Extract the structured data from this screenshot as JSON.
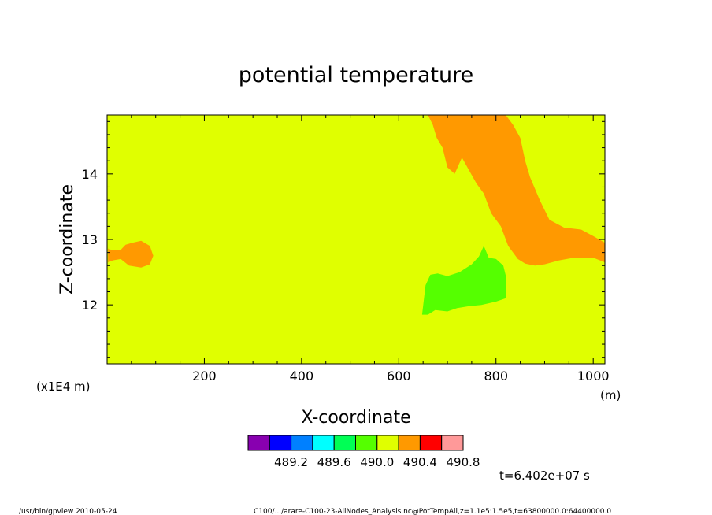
{
  "chart_data": {
    "type": "heatmap",
    "title": "potential temperature",
    "xlabel": "X-coordinate",
    "ylabel": "Z-coordinate",
    "x_units": "(m)",
    "y_units": "(x1E4 m)",
    "xlim": [
      0,
      1024
    ],
    "ylim": [
      11.1,
      14.9
    ],
    "x_ticks": [
      200,
      400,
      600,
      800,
      1000
    ],
    "y_ticks": [
      12,
      13,
      14
    ],
    "background_value_range": [
      490.2,
      490.4
    ],
    "background_color": "#e0ff00",
    "regions": [
      {
        "name": "orange-left",
        "value_range": [
          490.4,
          490.6
        ],
        "color": "#ff9900",
        "polygon": [
          [
            2,
            12.86
          ],
          [
            12,
            12.83
          ],
          [
            28,
            12.84
          ],
          [
            38,
            12.92
          ],
          [
            52,
            12.95
          ],
          [
            70,
            12.98
          ],
          [
            88,
            12.9
          ],
          [
            95,
            12.75
          ],
          [
            88,
            12.62
          ],
          [
            70,
            12.57
          ],
          [
            45,
            12.6
          ],
          [
            28,
            12.7
          ],
          [
            12,
            12.68
          ],
          [
            2,
            12.65
          ]
        ]
      },
      {
        "name": "orange-upper-right",
        "value_range": [
          490.4,
          490.6
        ],
        "color": "#ff9900",
        "polygon": [
          [
            660,
            14.9
          ],
          [
            820,
            14.9
          ],
          [
            835,
            14.75
          ],
          [
            850,
            14.55
          ],
          [
            860,
            14.2
          ],
          [
            870,
            13.95
          ],
          [
            890,
            13.6
          ],
          [
            910,
            13.3
          ],
          [
            940,
            13.18
          ],
          [
            975,
            13.15
          ],
          [
            1000,
            13.05
          ],
          [
            1024,
            12.95
          ],
          [
            1024,
            12.65
          ],
          [
            1000,
            12.72
          ],
          [
            960,
            12.72
          ],
          [
            930,
            12.68
          ],
          [
            900,
            12.62
          ],
          [
            880,
            12.6
          ],
          [
            860,
            12.63
          ],
          [
            845,
            12.7
          ],
          [
            825,
            12.9
          ],
          [
            810,
            13.2
          ],
          [
            790,
            13.4
          ],
          [
            775,
            13.7
          ],
          [
            760,
            13.85
          ],
          [
            745,
            14.05
          ],
          [
            730,
            14.25
          ],
          [
            715,
            14.0
          ],
          [
            700,
            14.1
          ],
          [
            690,
            14.4
          ],
          [
            678,
            14.55
          ],
          [
            670,
            14.75
          ]
        ]
      },
      {
        "name": "green-patch",
        "value_range": [
          490.0,
          490.2
        ],
        "color": "#55ff00",
        "polygon": [
          [
            648,
            11.85
          ],
          [
            655,
            12.3
          ],
          [
            665,
            12.46
          ],
          [
            680,
            12.48
          ],
          [
            700,
            12.44
          ],
          [
            725,
            12.5
          ],
          [
            750,
            12.62
          ],
          [
            765,
            12.74
          ],
          [
            775,
            12.9
          ],
          [
            785,
            12.72
          ],
          [
            800,
            12.7
          ],
          [
            815,
            12.6
          ],
          [
            820,
            12.45
          ],
          [
            820,
            12.1
          ],
          [
            800,
            12.05
          ],
          [
            770,
            12.0
          ],
          [
            745,
            11.98
          ],
          [
            720,
            11.95
          ],
          [
            700,
            11.9
          ],
          [
            675,
            11.92
          ],
          [
            660,
            11.85
          ]
        ]
      }
    ],
    "colorbar": {
      "colors": [
        "#8800b0",
        "#0000ff",
        "#0080ff",
        "#00ffff",
        "#00ff55",
        "#55ff00",
        "#e0ff00",
        "#ff9900",
        "#ff0000",
        "#ff9999"
      ],
      "labels": [
        "489.2",
        "489.6",
        "490.0",
        "490.4",
        "490.8"
      ]
    },
    "time_label": "t=6.402e+07 s"
  },
  "footer": {
    "left": "/usr/bin/gpview  2010-05-24",
    "right": "C100/.../arare-C100-23-AllNodes_Analysis.nc@PotTempAll,z=1.1e5:1.5e5,t=63800000.0:64400000.0"
  }
}
